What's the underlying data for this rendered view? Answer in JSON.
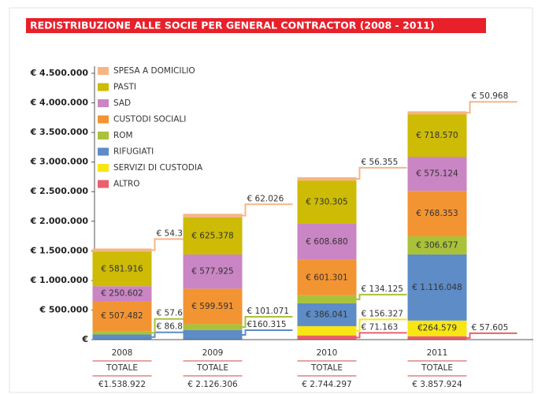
{
  "chart_data": {
    "type": "stacked-bar",
    "title": "REDISTRIBUZIONE ALLE SOCIE PER GENERAL CONTRACTOR (2008 - 2011)",
    "categories": [
      "2008",
      "2009",
      "2010",
      "2011"
    ],
    "total_label": "TOTALE",
    "totals": [
      {
        "value": 1538922,
        "label": "€1.538.922"
      },
      {
        "value": 2126306,
        "label": "€ 2.126.306"
      },
      {
        "value": 2744297,
        "label": "€ 2.744.297"
      },
      {
        "value": 3857924,
        "label": "€ 3.857.924"
      }
    ],
    "series": [
      {
        "name": "ALTRO",
        "color": "#ec5f6e",
        "values": [
          0,
          0,
          71163,
          57605
        ],
        "value_labels": [
          null,
          null,
          "€ 71.163",
          "€ 57.605"
        ]
      },
      {
        "name": "SERVIZI DI CUSTODIA",
        "color": "#f7e614",
        "values": [
          0,
          0,
          156327,
          264579
        ],
        "value_labels": [
          null,
          null,
          "€ 156.327",
          "€264.579"
        ]
      },
      {
        "name": "RIFUGIATI",
        "color": "#5d8cc7",
        "values": [
          86893,
          160315,
          386041,
          1116048
        ],
        "value_labels": [
          "€ 86.893",
          "€160.315",
          "€ 386.041",
          "€ 1.116.048"
        ]
      },
      {
        "name": "ROM",
        "color": "#a9c23a",
        "values": [
          57665,
          101071,
          134125,
          306677
        ],
        "value_labels": [
          "€ 57.665",
          "€ 101.071",
          "€ 134.125",
          "€ 306.677"
        ]
      },
      {
        "name": "CUSTODI SOCIALI",
        "color": "#f39433",
        "values": [
          507482,
          599591,
          601301,
          768353
        ],
        "value_labels": [
          "€ 507.482",
          "€ 599.591",
          "€ 601.301",
          "€ 768.353"
        ]
      },
      {
        "name": "SAD",
        "color": "#c985c4",
        "values": [
          250602,
          577925,
          608680,
          575124
        ],
        "value_labels": [
          "€ 250.602",
          "€ 577.925",
          "€ 608.680",
          "€ 575.124"
        ]
      },
      {
        "name": "PASTI",
        "color": "#cdbb06",
        "values": [
          581916,
          625378,
          730305,
          718570
        ],
        "value_labels": [
          "€ 581.916",
          "€ 625.378",
          "€ 730.305",
          "€ 718.570"
        ]
      },
      {
        "name": "SPESA A DOMICILIO",
        "color": "#f6b587",
        "values": [
          54364,
          62026,
          56355,
          50968
        ],
        "value_labels": [
          "€ 54.364",
          "€ 62.026",
          "€ 56.355",
          "€ 50.968"
        ]
      }
    ],
    "ylim": [
      0,
      4500000
    ],
    "yticks": [
      {
        "value": 0,
        "label": "€"
      },
      {
        "value": 500000,
        "label": "€ 500.000"
      },
      {
        "value": 1000000,
        "label": "€ 1.000.000"
      },
      {
        "value": 1500000,
        "label": "€ 1.500.000"
      },
      {
        "value": 2000000,
        "label": "€ 2.000.000"
      },
      {
        "value": 2500000,
        "label": "€ 2.500.000"
      },
      {
        "value": 3000000,
        "label": "€ 3.000.000"
      },
      {
        "value": 3500000,
        "label": "€ 3.500.000"
      },
      {
        "value": 4000000,
        "label": "€ 4.000.000"
      },
      {
        "value": 4500000,
        "label": "€ 4.500.000"
      }
    ],
    "legend": "top-left"
  }
}
